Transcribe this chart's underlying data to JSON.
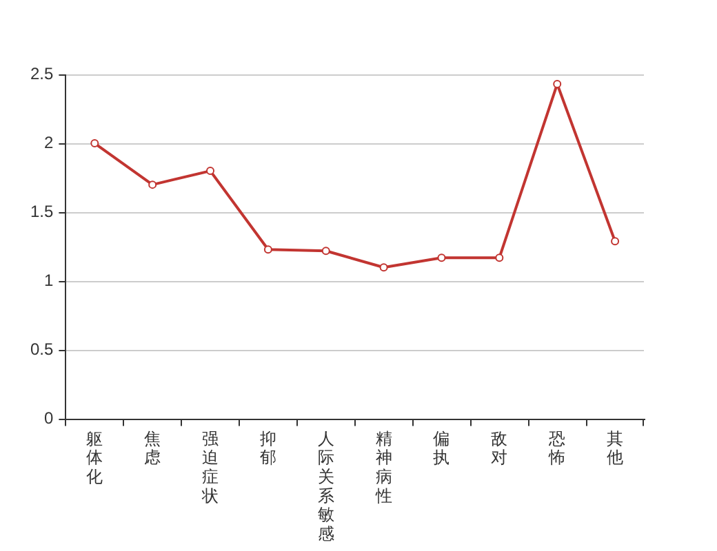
{
  "chart_data": {
    "type": "line",
    "categories": [
      "躯体化",
      "焦虑",
      "强迫症状",
      "抑郁",
      "人际关系敏感",
      "精神病性",
      "偏执",
      "敌对",
      "恐怖",
      "其他"
    ],
    "series": [
      {
        "color": "#c23531",
        "values": [
          2.0,
          1.7,
          1.8,
          1.23,
          1.22,
          1.1,
          1.17,
          1.17,
          2.43,
          1.29
        ]
      }
    ],
    "ylim": [
      0,
      2.5
    ],
    "yticks": [
      0,
      0.5,
      1,
      1.5,
      2,
      2.5
    ],
    "grid": "y",
    "legend": false,
    "marker": "circle",
    "line_style": "solid"
  }
}
